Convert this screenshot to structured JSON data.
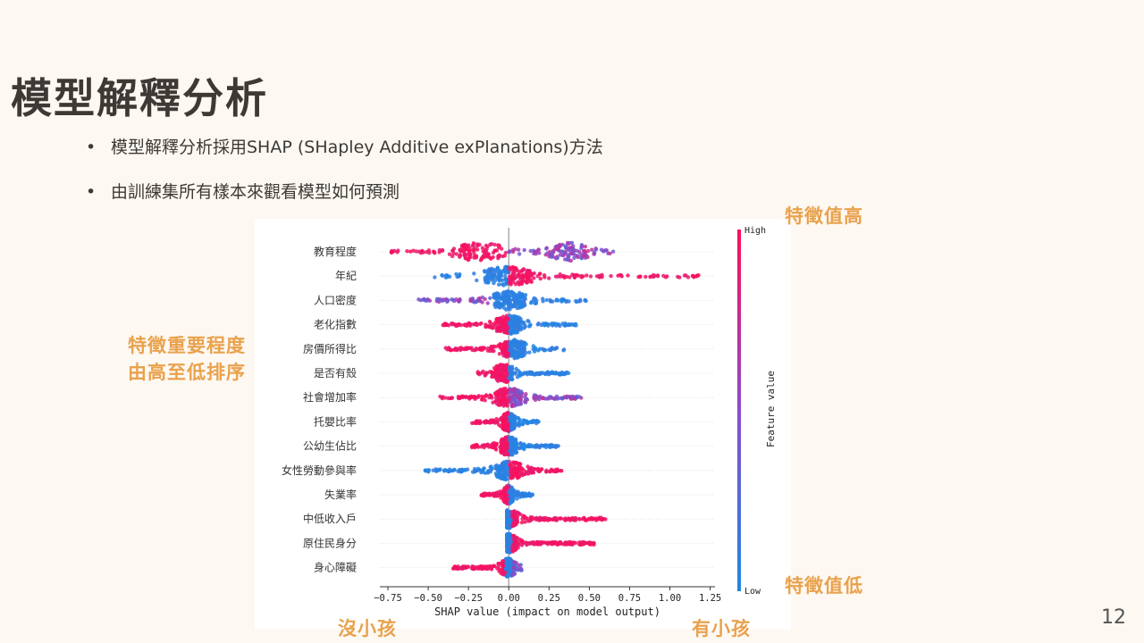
{
  "slide": {
    "title": "模型解釋分析",
    "bullets": [
      "模型解釋分析採用SHAP (SHapley Additive exPlanations)方法",
      "由訓練集所有樣本來觀看模型如何預測"
    ],
    "page_number": "12"
  },
  "annotations": {
    "high_value": "特徵值高",
    "low_value": "特徵值低",
    "importance_line1": "特徵重要程度",
    "importance_line2": "由高至低排序",
    "no_child": "沒小孩",
    "has_child": "有小孩"
  },
  "colors": {
    "high": "#ff0d57",
    "low": "#1e88e5",
    "mid": "#8a4ccc",
    "annotation": "#e9a24d"
  },
  "chart_data": {
    "type": "scatter",
    "subtype": "shap-beeswarm",
    "xlabel": "SHAP value (impact on model output)",
    "xlim": [
      -0.8,
      1.28
    ],
    "xticks": [
      -0.75,
      -0.5,
      -0.25,
      0.0,
      0.25,
      0.5,
      0.75,
      1.0,
      1.25
    ],
    "xtick_labels": [
      "−0.75",
      "−0.50",
      "−0.25",
      "0.00",
      "0.25",
      "0.50",
      "0.75",
      "1.00",
      "1.25"
    ],
    "colorbar": {
      "label": "Feature value",
      "high_label": "High",
      "low_label": "Low"
    },
    "features": [
      {
        "name": "教育程度",
        "min": -0.73,
        "max": 0.66,
        "segments": [
          [
            -0.73,
            0.0,
            "high"
          ],
          [
            0.0,
            0.66,
            "mid"
          ]
        ],
        "peak": -0.18,
        "peak2": 0.38
      },
      {
        "name": "年紀",
        "min": -0.46,
        "max": 1.19,
        "segments": [
          [
            -0.46,
            0.0,
            "low"
          ],
          [
            0.0,
            1.19,
            "high"
          ]
        ],
        "peak": 0.0
      },
      {
        "name": "人口密度",
        "min": -0.57,
        "max": 0.48,
        "segments": [
          [
            -0.57,
            -0.1,
            "mid"
          ],
          [
            -0.1,
            0.48,
            "low"
          ]
        ],
        "peak": 0.0
      },
      {
        "name": "老化指數",
        "min": -0.42,
        "max": 0.43,
        "segments": [
          [
            -0.42,
            0.0,
            "high"
          ],
          [
            0.0,
            0.43,
            "low"
          ]
        ],
        "peak": 0.0
      },
      {
        "name": "房價所得比",
        "min": -0.4,
        "max": 0.35,
        "segments": [
          [
            -0.4,
            0.0,
            "high"
          ],
          [
            0.0,
            0.35,
            "low"
          ]
        ],
        "peak": 0.03
      },
      {
        "name": "是否有殼",
        "min": -0.2,
        "max": 0.38,
        "segments": [
          [
            -0.2,
            0.0,
            "high"
          ],
          [
            0.0,
            0.38,
            "low"
          ]
        ],
        "peak": -0.03
      },
      {
        "name": "社會增加率",
        "min": -0.43,
        "max": 0.47,
        "segments": [
          [
            -0.43,
            0.0,
            "high"
          ],
          [
            0.0,
            0.47,
            "mid"
          ]
        ],
        "peak": 0.0
      },
      {
        "name": "托嬰比率",
        "min": -0.23,
        "max": 0.2,
        "segments": [
          [
            -0.23,
            0.0,
            "high"
          ],
          [
            0.0,
            0.2,
            "low"
          ]
        ],
        "peak": 0.0
      },
      {
        "name": "公幼生佔比",
        "min": -0.23,
        "max": 0.32,
        "segments": [
          [
            -0.23,
            0.0,
            "high"
          ],
          [
            0.0,
            0.32,
            "low"
          ]
        ],
        "peak": 0.0
      },
      {
        "name": "女性勞動參與率",
        "min": -0.52,
        "max": 0.33,
        "segments": [
          [
            -0.52,
            0.0,
            "low"
          ],
          [
            0.0,
            0.33,
            "high"
          ]
        ],
        "peak": 0.0
      },
      {
        "name": "失業率",
        "min": -0.17,
        "max": 0.15,
        "segments": [
          [
            -0.17,
            0.0,
            "high"
          ],
          [
            0.0,
            0.15,
            "low"
          ]
        ],
        "peak": 0.0
      },
      {
        "name": "中低收入戶",
        "min": -0.01,
        "max": 0.6,
        "segments": [
          [
            -0.01,
            0.02,
            "low"
          ],
          [
            0.02,
            0.6,
            "high"
          ]
        ],
        "peak": 0.0
      },
      {
        "name": "原住民身分",
        "min": -0.01,
        "max": 0.53,
        "segments": [
          [
            -0.01,
            0.02,
            "low"
          ],
          [
            0.02,
            0.53,
            "high"
          ]
        ],
        "peak": 0.0
      },
      {
        "name": "身心障礙",
        "min": -0.35,
        "max": 0.08,
        "segments": [
          [
            -0.35,
            -0.02,
            "high"
          ],
          [
            -0.02,
            0.02,
            "low"
          ]
        ],
        "peak": 0.0
      }
    ]
  }
}
